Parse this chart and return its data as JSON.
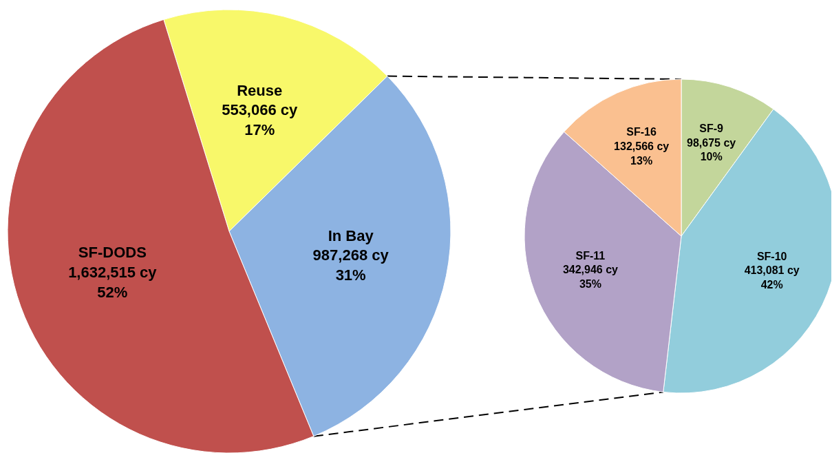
{
  "chart_data": [
    {
      "type": "pie",
      "categories": [
        "Reuse",
        "In Bay",
        "SF-DODS"
      ],
      "values": [
        553066,
        987268,
        1632515
      ],
      "colors": [
        "#f8f86a",
        "#8db3e2",
        "#c0504d"
      ],
      "value_labels": [
        "553,066 cy\n17%",
        "987,268 cy\n31%",
        "1,632,515 cy\n52%"
      ]
    },
    {
      "type": "pie",
      "categories": [
        "SF-9",
        "SF-10",
        "SF-11",
        "SF-16"
      ],
      "values": [
        98675,
        413081,
        342946,
        132566
      ],
      "colors": [
        "#c3d69b",
        "#92cddc",
        "#b2a2c7",
        "#fac090"
      ],
      "value_labels": [
        "98,675 cy\n10%",
        "413,081 cy\n42%",
        "342,946 cy\n35%",
        "132,566 cy\n13%"
      ]
    }
  ]
}
